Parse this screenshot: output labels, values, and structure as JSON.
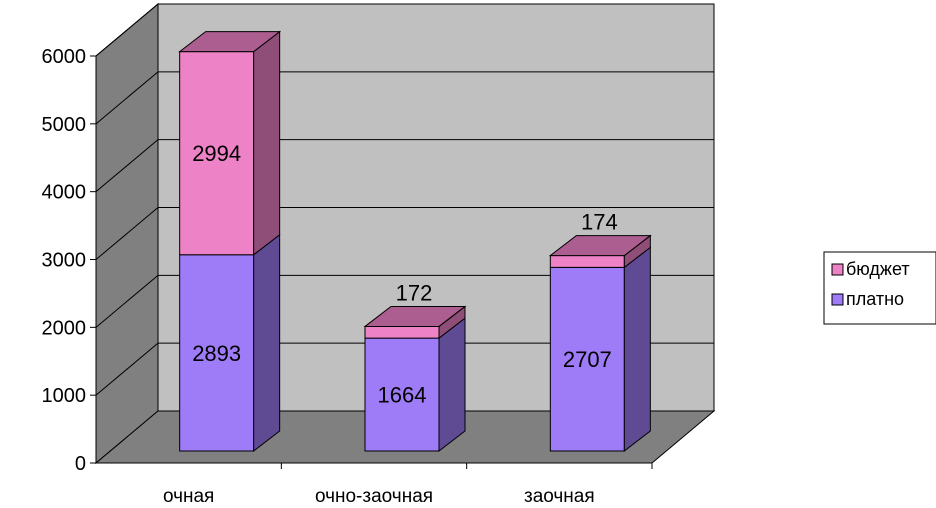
{
  "chart_data": {
    "type": "bar",
    "stacked": true,
    "three_d": true,
    "categories": [
      "очная",
      "очно-заочная",
      "заочная"
    ],
    "series": [
      {
        "name": "платно",
        "values": [
          2893,
          1664,
          2707
        ],
        "color": "#9f7cf7"
      },
      {
        "name": "бюджет",
        "values": [
          2994,
          172,
          174
        ],
        "color": "#ee82c6"
      }
    ],
    "ylim": [
      0,
      6000
    ],
    "yticks": [
      0,
      1000,
      2000,
      3000,
      4000,
      5000,
      6000
    ],
    "grid": true,
    "legend": "right",
    "legend_order": [
      1,
      0
    ],
    "wall_color": "#c0c0c0",
    "floor_color": "#808080",
    "side_wall_color": "#808080"
  }
}
